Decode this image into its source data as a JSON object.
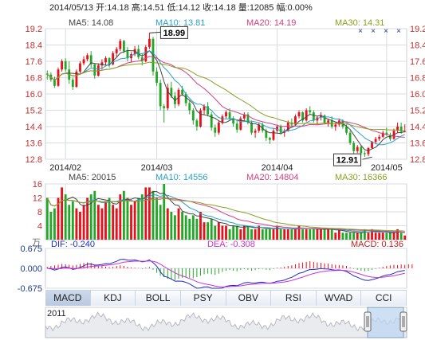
{
  "header": {
    "date": "2014/05/13",
    "open_label": "开:",
    "open": "14.18",
    "high_label": "高:",
    "high": "14.51",
    "low_label": "低:",
    "low": "14.12",
    "close_label": "收:",
    "close": "14.18",
    "volume_label": "量:",
    "volume": "12085",
    "change_label": "幅:",
    "change": "0.00%"
  },
  "price_legend": [
    {
      "label": "MA5: 14.08",
      "color": "#444444"
    },
    {
      "label": "MA10: 13.81",
      "color": "#2aa0c8"
    },
    {
      "label": "MA20: 14.19",
      "color": "#d04080"
    },
    {
      "label": "MA30: 14.31",
      "color": "#8aa020"
    }
  ],
  "volume_legend": [
    {
      "label": "MA5: 20015",
      "color": "#444444"
    },
    {
      "label": "MA10: 14556",
      "color": "#2aa0c8"
    },
    {
      "label": "MA20: 14804",
      "color": "#d04080"
    },
    {
      "label": "MA30: 16366",
      "color": "#8aa020"
    }
  ],
  "macd_legend": {
    "dif": "DIF: -0.240",
    "dea": "DEA: -0.308",
    "macd": "MACD: 0.136"
  },
  "volume_unit": "万",
  "tabs": [
    "MACD",
    "KDJ",
    "BOLL",
    "PSY",
    "OBV",
    "RSI",
    "WVAD",
    "CCI"
  ],
  "active_tab": "MACD",
  "navigator": {
    "year": "2011"
  },
  "colors": {
    "up": "#e8101a",
    "down": "#22a826",
    "grid": "#d7dbe3",
    "axis": "#c03030"
  },
  "chart_data": [
    {
      "type": "candlestick",
      "ylim": [
        12.8,
        19.2
      ],
      "yticks": [
        "19.2",
        "18.4",
        "17.6",
        "16.8",
        "16.0",
        "15.2",
        "14.4",
        "13.6",
        "12.8"
      ],
      "xticks": [
        {
          "index": 5,
          "label": "2014/02"
        },
        {
          "index": 30,
          "label": "2014/03"
        },
        {
          "index": 63,
          "label": "2014/04"
        },
        {
          "index": 93,
          "label": "2014/05"
        }
      ],
      "annotations": [
        {
          "index": 28,
          "value": 18.99,
          "label": "18.99"
        },
        {
          "index": 89,
          "value": 12.91,
          "label": "12.91"
        }
      ],
      "ohlc": [
        [
          17.0,
          17.15,
          16.7,
          16.95
        ],
        [
          16.95,
          17.05,
          16.6,
          16.7
        ],
        [
          16.7,
          16.85,
          16.3,
          16.4
        ],
        [
          16.4,
          17.3,
          16.35,
          17.2
        ],
        [
          17.2,
          17.7,
          17.1,
          17.6
        ],
        [
          17.6,
          17.75,
          17.1,
          17.2
        ],
        [
          17.2,
          17.6,
          16.5,
          16.7
        ],
        [
          16.7,
          16.8,
          16.2,
          16.35
        ],
        [
          16.35,
          17.2,
          16.3,
          17.1
        ],
        [
          17.1,
          17.6,
          17.0,
          17.5
        ],
        [
          17.5,
          17.85,
          17.4,
          17.7
        ],
        [
          17.7,
          18.0,
          17.6,
          17.9
        ],
        [
          17.9,
          18.1,
          17.3,
          17.45
        ],
        [
          17.45,
          17.5,
          16.75,
          16.9
        ],
        [
          16.9,
          17.5,
          16.85,
          17.4
        ],
        [
          17.4,
          17.7,
          17.2,
          17.55
        ],
        [
          17.55,
          17.85,
          17.4,
          17.75
        ],
        [
          17.75,
          17.8,
          17.3,
          17.45
        ],
        [
          17.45,
          18.1,
          17.4,
          18.0
        ],
        [
          18.0,
          18.3,
          17.8,
          18.2
        ],
        [
          18.2,
          18.7,
          18.1,
          18.6
        ],
        [
          18.6,
          18.65,
          18.0,
          18.1
        ],
        [
          18.1,
          18.3,
          17.6,
          17.75
        ],
        [
          17.75,
          18.05,
          17.55,
          17.95
        ],
        [
          17.95,
          18.35,
          17.85,
          18.2
        ],
        [
          18.2,
          18.4,
          17.7,
          17.8
        ],
        [
          17.8,
          18.0,
          17.4,
          17.6
        ],
        [
          17.6,
          18.4,
          17.55,
          18.3
        ],
        [
          18.3,
          18.99,
          18.2,
          18.7
        ],
        [
          18.7,
          18.8,
          16.9,
          17.1
        ],
        [
          17.1,
          17.3,
          16.4,
          16.55
        ],
        [
          16.55,
          16.7,
          15.2,
          15.4
        ],
        [
          15.4,
          15.5,
          14.6,
          15.3
        ],
        [
          15.3,
          16.5,
          15.2,
          16.3
        ],
        [
          16.3,
          16.6,
          15.8,
          15.9
        ],
        [
          15.9,
          16.1,
          15.3,
          15.5
        ],
        [
          15.5,
          16.3,
          15.4,
          16.2
        ],
        [
          16.2,
          16.4,
          15.9,
          16.0
        ],
        [
          16.0,
          16.1,
          15.4,
          15.55
        ],
        [
          15.55,
          15.7,
          15.0,
          15.2
        ],
        [
          15.2,
          15.3,
          14.5,
          14.7
        ],
        [
          14.7,
          14.8,
          14.2,
          14.4
        ],
        [
          14.4,
          15.3,
          14.35,
          15.2
        ],
        [
          15.2,
          15.5,
          15.0,
          15.4
        ],
        [
          15.4,
          15.6,
          14.9,
          15.0
        ],
        [
          15.0,
          15.1,
          14.2,
          14.35
        ],
        [
          14.35,
          14.5,
          13.9,
          14.1
        ],
        [
          14.1,
          14.7,
          14.0,
          14.6
        ],
        [
          14.6,
          15.0,
          14.5,
          14.9
        ],
        [
          14.9,
          15.2,
          14.8,
          15.1
        ],
        [
          15.1,
          15.3,
          14.7,
          14.8
        ],
        [
          14.8,
          14.9,
          14.4,
          14.55
        ],
        [
          14.55,
          14.7,
          14.1,
          14.25
        ],
        [
          14.25,
          14.9,
          14.2,
          14.8
        ],
        [
          14.8,
          15.1,
          14.7,
          15.0
        ],
        [
          15.0,
          15.1,
          14.5,
          14.6
        ],
        [
          14.6,
          14.7,
          14.0,
          14.1
        ],
        [
          14.1,
          14.3,
          13.85,
          14.2
        ],
        [
          14.2,
          14.6,
          14.1,
          14.5
        ],
        [
          14.5,
          14.6,
          14.1,
          14.2
        ],
        [
          14.2,
          14.3,
          13.7,
          13.85
        ],
        [
          13.85,
          13.9,
          13.55,
          13.75
        ],
        [
          13.75,
          14.3,
          13.7,
          14.2
        ],
        [
          14.2,
          14.5,
          14.1,
          14.4
        ],
        [
          14.4,
          14.5,
          14.0,
          14.1
        ],
        [
          14.1,
          14.3,
          13.9,
          14.2
        ],
        [
          14.2,
          14.7,
          14.15,
          14.6
        ],
        [
          14.6,
          14.8,
          14.4,
          14.5
        ],
        [
          14.5,
          15.0,
          14.45,
          14.9
        ],
        [
          14.9,
          15.2,
          14.8,
          15.1
        ],
        [
          15.1,
          15.15,
          14.6,
          14.7
        ],
        [
          14.7,
          15.3,
          14.65,
          15.2
        ],
        [
          15.2,
          15.4,
          15.0,
          15.1
        ],
        [
          15.1,
          15.2,
          14.6,
          14.7
        ],
        [
          14.7,
          14.9,
          14.5,
          14.85
        ],
        [
          14.85,
          15.1,
          14.7,
          14.95
        ],
        [
          14.95,
          15.0,
          14.55,
          14.6
        ],
        [
          14.6,
          14.8,
          14.4,
          14.7
        ],
        [
          14.7,
          14.9,
          14.3,
          14.4
        ],
        [
          14.4,
          14.6,
          14.2,
          14.5
        ],
        [
          14.5,
          14.8,
          14.4,
          14.7
        ],
        [
          14.7,
          14.75,
          14.3,
          14.4
        ],
        [
          14.4,
          14.5,
          14.0,
          14.1
        ],
        [
          14.1,
          14.2,
          13.5,
          13.6
        ],
        [
          13.6,
          13.7,
          13.0,
          13.2
        ],
        [
          13.2,
          13.5,
          13.1,
          13.4
        ],
        [
          13.4,
          13.5,
          13.0,
          13.1
        ],
        [
          13.1,
          13.2,
          12.91,
          13.05
        ],
        [
          13.05,
          13.4,
          12.95,
          13.35
        ],
        [
          13.35,
          13.7,
          13.3,
          13.65
        ],
        [
          13.65,
          13.9,
          13.55,
          13.8
        ],
        [
          13.8,
          14.0,
          13.7,
          13.9
        ],
        [
          13.9,
          14.2,
          13.85,
          14.1
        ],
        [
          14.1,
          14.35,
          13.95,
          14.0
        ],
        [
          14.0,
          14.1,
          13.7,
          13.8
        ],
        [
          13.8,
          14.3,
          13.75,
          14.2
        ],
        [
          14.2,
          14.6,
          14.1,
          14.4
        ],
        [
          14.4,
          14.6,
          14.05,
          14.15
        ],
        [
          14.18,
          14.51,
          14.12,
          14.18
        ]
      ]
    },
    {
      "type": "bar",
      "name": "volume",
      "ylim": [
        0,
        16
      ],
      "yticks": [
        "16",
        "12",
        "8",
        "4"
      ],
      "values": [
        12,
        8,
        9,
        12,
        15,
        13,
        10,
        11,
        9,
        8,
        10,
        12,
        13,
        14,
        10,
        9,
        11,
        12,
        10,
        9,
        13,
        14,
        12,
        10,
        11,
        12,
        13,
        15,
        15,
        14,
        12,
        10,
        16,
        9,
        8,
        7,
        9,
        8,
        7,
        6,
        7,
        6,
        8,
        5,
        5,
        6,
        4,
        5,
        4,
        4,
        3,
        4,
        4,
        3,
        4,
        4,
        3,
        3,
        4,
        3,
        3,
        3,
        3,
        4,
        3,
        3,
        3,
        3,
        3,
        4,
        3,
        3,
        3,
        3,
        3,
        3,
        3,
        3,
        3,
        2,
        3,
        2,
        2,
        2,
        2,
        2,
        2,
        3,
        2,
        3,
        2,
        2,
        2,
        2,
        2,
        2,
        3,
        2,
        1.2
      ]
    },
    {
      "type": "bar",
      "name": "macd",
      "ylim": [
        -0.675,
        0.675
      ],
      "yticks": [
        "0.675",
        "0.000",
        "-0.675"
      ],
      "values": [
        0.05,
        0.08,
        0.1,
        0.12,
        0.15,
        0.14,
        0.12,
        0.1,
        0.12,
        0.15,
        0.18,
        0.2,
        0.18,
        0.12,
        0.1,
        0.08,
        0.06,
        0.04,
        0.05,
        0.08,
        0.1,
        0.08,
        0.05,
        0.03,
        0.02,
        0.01,
        -0.02,
        0.02,
        0.04,
        -0.05,
        -0.15,
        -0.25,
        -0.3,
        -0.35,
        -0.38,
        -0.4,
        -0.35,
        -0.32,
        -0.3,
        -0.32,
        -0.34,
        -0.3,
        -0.25,
        -0.2,
        -0.18,
        -0.2,
        -0.22,
        -0.18,
        -0.12,
        -0.08,
        -0.06,
        -0.08,
        -0.1,
        -0.06,
        -0.03,
        -0.05,
        -0.08,
        -0.06,
        -0.03,
        -0.02,
        -0.05,
        -0.06,
        -0.02,
        0.02,
        0.03,
        0.05,
        0.08,
        0.1,
        0.14,
        0.18,
        0.2,
        0.22,
        0.24,
        0.22,
        0.2,
        0.19,
        0.17,
        0.16,
        0.14,
        0.12,
        0.11,
        0.1,
        0.08,
        0.03,
        -0.02,
        -0.05,
        -0.08,
        -0.1,
        -0.08,
        -0.05,
        -0.02,
        0.02,
        0.05,
        0.08,
        0.1,
        0.12,
        0.11,
        0.13,
        0.12,
        0.14,
        0.136
      ]
    }
  ]
}
